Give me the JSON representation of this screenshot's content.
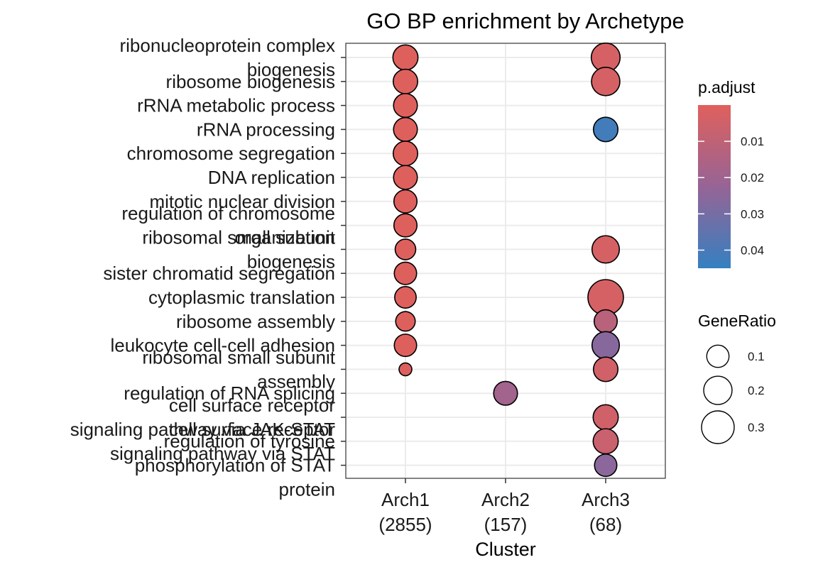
{
  "chart_data": {
    "type": "scatter",
    "title": "GO BP enrichment by Archetype",
    "xlabel": "Cluster",
    "ylabel": "",
    "categories": [
      "Arch1\n(2855)",
      "Arch2\n(157)",
      "Arch3\n(68)"
    ],
    "terms": [
      "ribonucleoprotein complex\nbiogenesis",
      "ribosome biogenesis",
      "rRNA metabolic process",
      "rRNA processing",
      "chromosome segregation",
      "DNA replication",
      "mitotic nuclear division",
      "regulation of chromosome\norganization",
      "ribosomal small subunit\nbiogenesis",
      "sister chromatid segregation",
      "cytoplasmic translation",
      "ribosome assembly",
      "leukocyte cell-cell adhesion",
      "ribosomal small subunit\nassembly",
      "regulation of RNA splicing",
      "cell surface receptor\nsignaling pathway via JAK-STAT",
      "cell surface receptor\nsignaling pathway via STAT",
      "regulation of tyrosine\nphosphorylation of STAT\nprotein"
    ],
    "points": [
      {
        "term": 0,
        "cluster": 0,
        "gene_ratio": 0.14,
        "p_adjust": 0.0005
      },
      {
        "term": 1,
        "cluster": 0,
        "gene_ratio": 0.13,
        "p_adjust": 0.0005
      },
      {
        "term": 2,
        "cluster": 0,
        "gene_ratio": 0.12,
        "p_adjust": 0.0005
      },
      {
        "term": 3,
        "cluster": 0,
        "gene_ratio": 0.12,
        "p_adjust": 0.0005
      },
      {
        "term": 4,
        "cluster": 0,
        "gene_ratio": 0.13,
        "p_adjust": 0.0005
      },
      {
        "term": 5,
        "cluster": 0,
        "gene_ratio": 0.12,
        "p_adjust": 0.0005
      },
      {
        "term": 6,
        "cluster": 0,
        "gene_ratio": 0.11,
        "p_adjust": 0.0005
      },
      {
        "term": 7,
        "cluster": 0,
        "gene_ratio": 0.11,
        "p_adjust": 0.0005
      },
      {
        "term": 8,
        "cluster": 0,
        "gene_ratio": 0.08,
        "p_adjust": 0.0005
      },
      {
        "term": 9,
        "cluster": 0,
        "gene_ratio": 0.1,
        "p_adjust": 0.0005
      },
      {
        "term": 10,
        "cluster": 0,
        "gene_ratio": 0.09,
        "p_adjust": 0.0005
      },
      {
        "term": 11,
        "cluster": 0,
        "gene_ratio": 0.07,
        "p_adjust": 0.0005
      },
      {
        "term": 12,
        "cluster": 0,
        "gene_ratio": 0.1,
        "p_adjust": 0.0005
      },
      {
        "term": 13,
        "cluster": 0,
        "gene_ratio": 0.04,
        "p_adjust": 0.001
      },
      {
        "term": 14,
        "cluster": 1,
        "gene_ratio": 0.12,
        "p_adjust": 0.019
      },
      {
        "term": 0,
        "cluster": 2,
        "gene_ratio": 0.21,
        "p_adjust": 0.003
      },
      {
        "term": 1,
        "cluster": 2,
        "gene_ratio": 0.2,
        "p_adjust": 0.003
      },
      {
        "term": 3,
        "cluster": 2,
        "gene_ratio": 0.13,
        "p_adjust": 0.042
      },
      {
        "term": 8,
        "cluster": 2,
        "gene_ratio": 0.18,
        "p_adjust": 0.003
      },
      {
        "term": 10,
        "cluster": 2,
        "gene_ratio": 0.38,
        "p_adjust": 0.003
      },
      {
        "term": 11,
        "cluster": 2,
        "gene_ratio": 0.11,
        "p_adjust": 0.012
      },
      {
        "term": 12,
        "cluster": 2,
        "gene_ratio": 0.18,
        "p_adjust": 0.026
      },
      {
        "term": 13,
        "cluster": 2,
        "gene_ratio": 0.13,
        "p_adjust": 0.005
      },
      {
        "term": 15,
        "cluster": 2,
        "gene_ratio": 0.14,
        "p_adjust": 0.005
      },
      {
        "term": 16,
        "cluster": 2,
        "gene_ratio": 0.14,
        "p_adjust": 0.007
      },
      {
        "term": 17,
        "cluster": 2,
        "gene_ratio": 0.1,
        "p_adjust": 0.025
      }
    ],
    "color_legend": {
      "title": "p.adjust",
      "ticks": [
        "0.01",
        "0.02",
        "0.03",
        "0.04"
      ],
      "tick_values": [
        0.01,
        0.02,
        0.03,
        0.04
      ],
      "range": [
        0.0,
        0.045
      ],
      "low_color": "#e0605c",
      "high_color": "#3580c0"
    },
    "size_legend": {
      "title": "GeneRatio",
      "ticks": [
        "0.1",
        "0.2",
        "0.3"
      ],
      "tick_values": [
        0.1,
        0.2,
        0.3
      ]
    },
    "grid": true,
    "legend_position": "right"
  }
}
